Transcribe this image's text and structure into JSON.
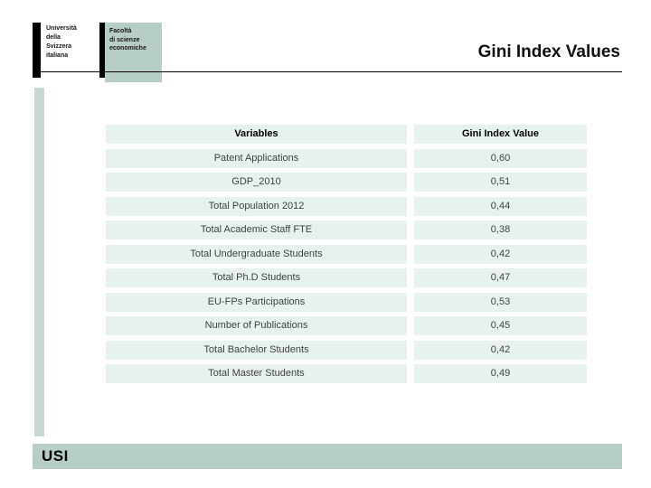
{
  "header": {
    "university": {
      "lines": [
        "Università",
        "della",
        "Svizzera",
        "italiana"
      ]
    },
    "faculty": {
      "lines": [
        "Facoltà",
        "di scienze",
        "economiche"
      ]
    },
    "title": "Gini Index Values"
  },
  "footer": {
    "logo_text": "USI"
  },
  "table": {
    "headers": {
      "variables": "Variables",
      "value": "Gini Index Value"
    },
    "rows": [
      {
        "variable": "Patent Applications",
        "value": "0,60"
      },
      {
        "variable": "GDP_2010",
        "value": "0,51"
      },
      {
        "variable": "Total Population 2012",
        "value": "0,44"
      },
      {
        "variable": "Total Academic Staff FTE",
        "value": "0,38"
      },
      {
        "variable": "Total Undergraduate Students",
        "value": "0,42"
      },
      {
        "variable": "Total Ph.D Students",
        "value": "0,47"
      },
      {
        "variable": "EU-FPs Participations",
        "value": "0,53"
      },
      {
        "variable": "Number of Publications",
        "value": "0,45"
      },
      {
        "variable": "Total Bachelor Students",
        "value": "0,42"
      },
      {
        "variable": "Total Master Students",
        "value": "0,49"
      }
    ]
  },
  "colors": {
    "row_bg": "#e8f2ed",
    "accent_bar": "#b7cec4",
    "side_strip": "#c8d9d1",
    "line": "#000000"
  },
  "chart_data": {
    "type": "table",
    "title": "Gini Index Values",
    "columns": [
      "Variables",
      "Gini Index Value"
    ],
    "rows": [
      [
        "Patent Applications",
        "0,60"
      ],
      [
        "GDP_2010",
        "0,51"
      ],
      [
        "Total Population 2012",
        "0,44"
      ],
      [
        "Total Academic Staff FTE",
        "0,38"
      ],
      [
        "Total Undergraduate Students",
        "0,42"
      ],
      [
        "Total Ph.D Students",
        "0,47"
      ],
      [
        "EU-FPs Participations",
        "0,53"
      ],
      [
        "Number of Publications",
        "0,45"
      ],
      [
        "Total Bachelor Students",
        "0,42"
      ],
      [
        "Total Master Students",
        "0,49"
      ]
    ]
  }
}
